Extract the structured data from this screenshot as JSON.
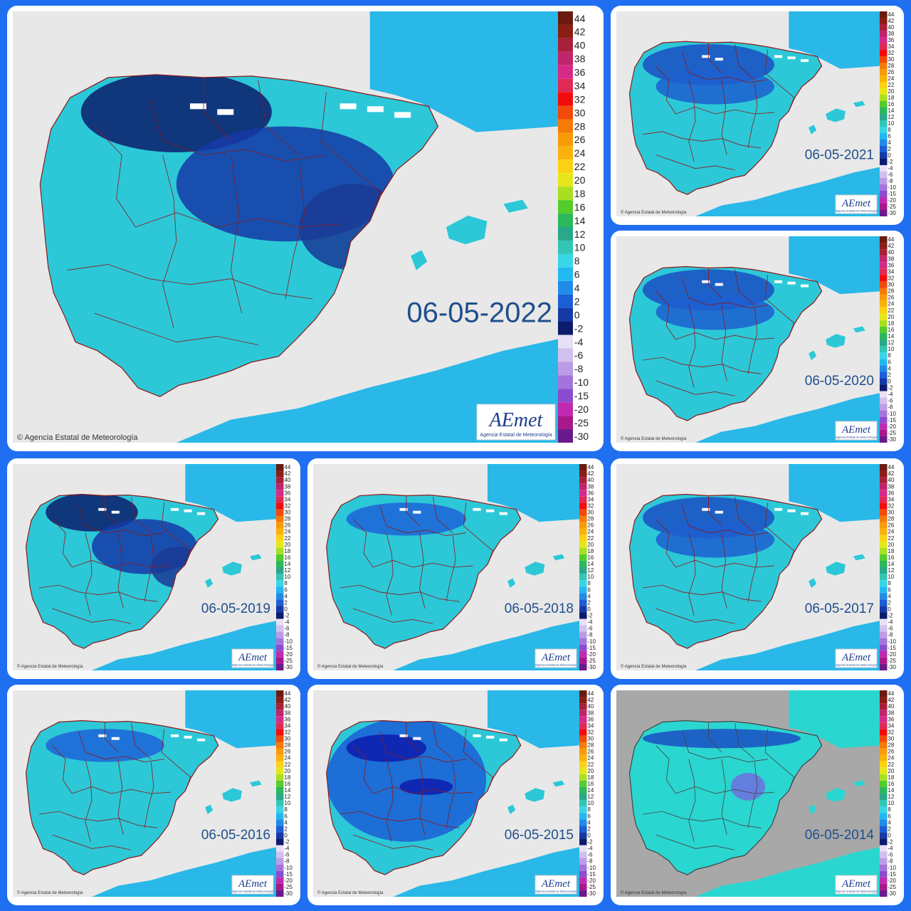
{
  "copyright": "© Agencia Estatal de Meteorología",
  "logo": {
    "word": "AEmet",
    "sub": "Agencia Estatal de Meteorología"
  },
  "legend": {
    "ticks": [
      "44",
      "42",
      "40",
      "38",
      "36",
      "34",
      "32",
      "30",
      "28",
      "26",
      "24",
      "22",
      "20",
      "18",
      "16",
      "14",
      "12",
      "10",
      "8",
      "6",
      "4",
      "2",
      "0",
      "-2",
      "-4",
      "-6",
      "-8",
      "-10",
      "-15",
      "-20",
      "-25",
      "-30"
    ],
    "colors": [
      "#6b1a10",
      "#8a1d14",
      "#a8203a",
      "#c0246a",
      "#d62a8a",
      "#e02a55",
      "#f20d0d",
      "#f24a0a",
      "#f57a08",
      "#f79c08",
      "#fab20a",
      "#fbd212",
      "#e6e61a",
      "#a8e020",
      "#54cc2c",
      "#2cb85c",
      "#2aa88a",
      "#33c5b5",
      "#38d6e6",
      "#22b8f2",
      "#1f8ce8",
      "#1b5ed6",
      "#153aa8",
      "#0c1c6c",
      "#e8e0f5",
      "#d2c0ee",
      "#bb9ce6",
      "#a374dc",
      "#8b4cd0",
      "#c02ab0",
      "#a8188a",
      "#6a1a8a"
    ]
  },
  "colors": {
    "background": "#1f6ff0",
    "sea": "#e8e8e8",
    "sea_2014": "#a8a8a8",
    "border": "#8b1a1a"
  },
  "maps": [
    {
      "date": "06-05-2022",
      "style": "very-cold-north"
    },
    {
      "date": "06-05-2021",
      "style": "cold-north"
    },
    {
      "date": "06-05-2020",
      "style": "cold-north"
    },
    {
      "date": "06-05-2019",
      "style": "very-cold-north"
    },
    {
      "date": "06-05-2018",
      "style": "mild"
    },
    {
      "date": "06-05-2017",
      "style": "cold-north"
    },
    {
      "date": "06-05-2016",
      "style": "mild"
    },
    {
      "date": "06-05-2015",
      "style": "cold-widespread"
    },
    {
      "date": "06-05-2014",
      "style": "warm-grey"
    }
  ]
}
